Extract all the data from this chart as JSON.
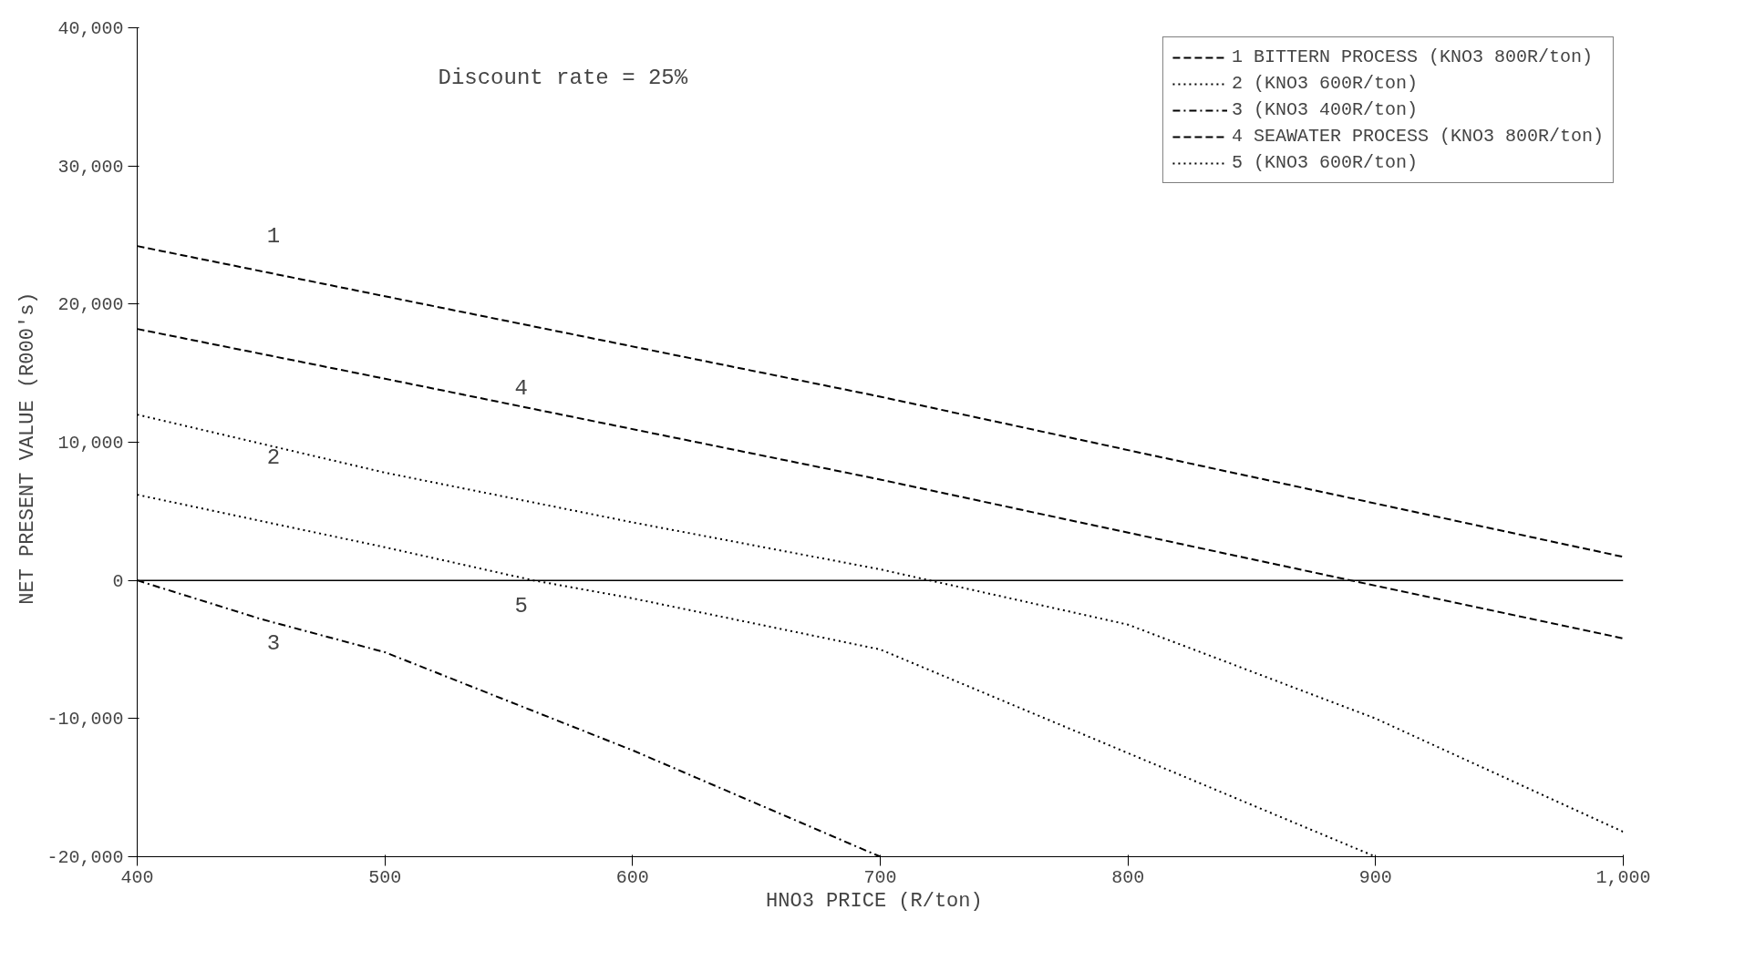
{
  "chart_data": {
    "type": "line",
    "xlabel": "HNO3 PRICE  (R/ton)",
    "ylabel": "NET PRESENT VALUE  (R000's)",
    "xlim": [
      400,
      1000
    ],
    "ylim": [
      -20000,
      40000
    ],
    "xticks": [
      400,
      500,
      600,
      700,
      800,
      900,
      {
        "value": 1000,
        "label": "1,000"
      }
    ],
    "yticks": [
      {
        "value": -20000,
        "label": "-20,000"
      },
      {
        "value": -10000,
        "label": "-10,000"
      },
      0,
      {
        "value": 10000,
        "label": "10,000"
      },
      {
        "value": 20000,
        "label": "20,000"
      },
      {
        "value": 30000,
        "label": "30,000"
      },
      {
        "value": 40000,
        "label": "40,000"
      }
    ],
    "grid": false,
    "legend": "top right",
    "marker": "none",
    "ref_lines": [
      {
        "axis": "y",
        "value": 0,
        "color": "#000000",
        "line_style": "solid"
      }
    ],
    "series": [
      {
        "name": "1 BITTERN PROCESS (KNO3 800R/ton)",
        "color": "#000000",
        "line_style": "dashed",
        "x": [
          400,
          700,
          1000
        ],
        "values": [
          24200,
          13300,
          1700
        ]
      },
      {
        "name": "2 (KNO3 600R/ton)",
        "color": "#000000",
        "line_style": "dotted",
        "x": [
          400,
          500,
          600,
          700,
          720,
          800,
          900,
          1000
        ],
        "values": [
          12000,
          7800,
          4200,
          800,
          0,
          -3200,
          -10000,
          -18200
        ]
      },
      {
        "name": "3 (KNO3 400R/ton)",
        "color": "#000000",
        "line_style": "dashdot",
        "x": [
          400,
          450,
          500,
          600,
          700
        ],
        "values": [
          0,
          -2800,
          -5200,
          -12300,
          -20000
        ]
      },
      {
        "name": "4 SEAWATER PROCESS (KNO3 800R/ton)",
        "color": "#000000",
        "line_style": "dashed",
        "x": [
          400,
          500,
          700,
          890,
          1000
        ],
        "values": [
          18200,
          14600,
          7300,
          0,
          -4200
        ]
      },
      {
        "name": "5 (KNO3 600R/ton)",
        "color": "#000000",
        "line_style": "dotted",
        "x": [
          400,
          500,
          560,
          600,
          700,
          800,
          900
        ],
        "values": [
          6200,
          2400,
          0,
          -1300,
          -5000,
          -12500,
          -20000
        ]
      }
    ],
    "annotations": [
      "Discount rate = 25%",
      "1",
      "4",
      "2",
      "5",
      "3"
    ]
  }
}
